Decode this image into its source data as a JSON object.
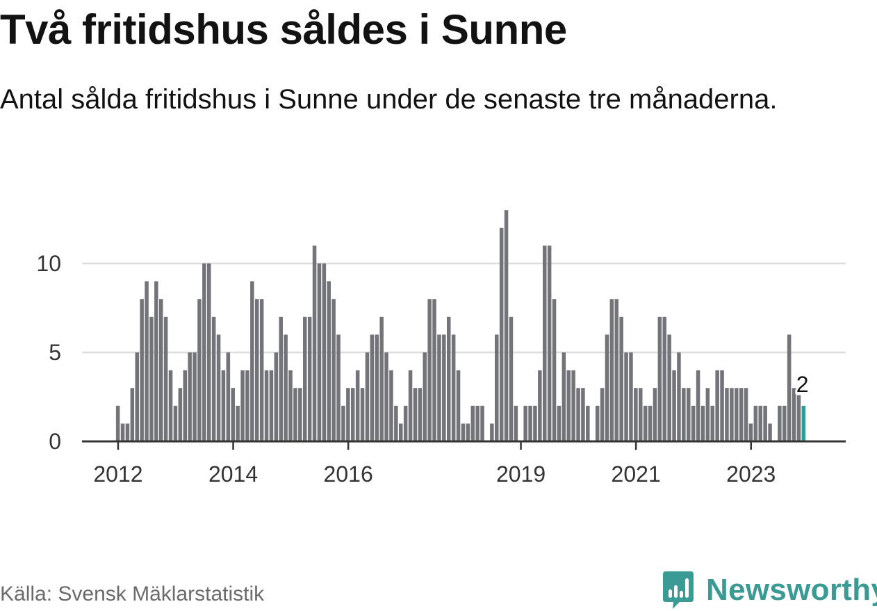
{
  "title": "Två fritidshus såldes i Sunne",
  "subtitle": "Antal sålda fritidshus i Sunne under de senaste tre månaderna.",
  "source": "Källa: Svensk Mäklarstatistik",
  "brand": "Newsworthy",
  "colors": {
    "bar": "#73737a",
    "highlight": "#2a9d95",
    "grid": "#dddddd",
    "axis": "#333333",
    "brand": "#3a9a94"
  },
  "chart_data": {
    "type": "bar",
    "x_start": "2012-01",
    "ylim": [
      0,
      13.5
    ],
    "y_ticks": [
      0,
      5,
      10
    ],
    "x_tick_labels": [
      "2012",
      "2014",
      "2016",
      "2019",
      "2021",
      "2023"
    ],
    "values": [
      2,
      1,
      1,
      3,
      5,
      8,
      9,
      7,
      9,
      8,
      7,
      4,
      2,
      3,
      4,
      5,
      5,
      8,
      10,
      10,
      7,
      6,
      4,
      5,
      3,
      2,
      4,
      4,
      9,
      8,
      8,
      4,
      4,
      5,
      7,
      6,
      4,
      3,
      3,
      7,
      7,
      11,
      10,
      10,
      9,
      8,
      6,
      2,
      3,
      3,
      4,
      3,
      5,
      6,
      6,
      7,
      5,
      4,
      2,
      1,
      2,
      4,
      3,
      3,
      5,
      8,
      8,
      6,
      6,
      7,
      6,
      4,
      1,
      1,
      2,
      2,
      2,
      0,
      1,
      6,
      12,
      13,
      7,
      2,
      0,
      2,
      2,
      2,
      4,
      11,
      11,
      8,
      2,
      5,
      4,
      4,
      3,
      3,
      2,
      0,
      2,
      3,
      6,
      8,
      8,
      7,
      5,
      5,
      3,
      3,
      2,
      2,
      3,
      7,
      7,
      6,
      4,
      5,
      3,
      3,
      2,
      4,
      2,
      3,
      2,
      4,
      4,
      3,
      3,
      3,
      3,
      3,
      1,
      2,
      2,
      2,
      1,
      0,
      2,
      2,
      6,
      3,
      2.6,
      2
    ],
    "highlight_label": "2"
  }
}
